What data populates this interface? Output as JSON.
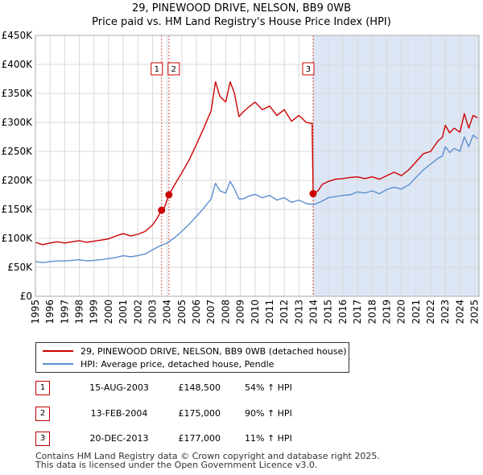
{
  "header": {
    "title_line1": "29, PINEWOOD DRIVE, NELSON, BB9 0WB",
    "title_line2": "Price paid vs. HM Land Registry's House Price Index (HPI)"
  },
  "chart_data": {
    "type": "line",
    "title": "29, PINEWOOD DRIVE, NELSON, BB9 0WB — Price paid vs. HM Land Registry's House Price Index (HPI)",
    "xlabel": "",
    "ylabel": "",
    "xlim": [
      1995,
      2025.3
    ],
    "ylim": [
      0,
      450000
    ],
    "y_ticks": [
      0,
      50000,
      100000,
      150000,
      200000,
      250000,
      300000,
      350000,
      400000,
      450000
    ],
    "y_tick_labels": [
      "£0",
      "£50K",
      "£100K",
      "£150K",
      "£200K",
      "£250K",
      "£300K",
      "£350K",
      "£400K",
      "£450K"
    ],
    "x_ticks": [
      1995,
      1996,
      1997,
      1998,
      1999,
      2000,
      2001,
      2002,
      2003,
      2004,
      2005,
      2006,
      2007,
      2008,
      2009,
      2010,
      2011,
      2012,
      2013,
      2014,
      2015,
      2016,
      2017,
      2018,
      2019,
      2020,
      2021,
      2022,
      2023,
      2024,
      2025
    ],
    "x_tick_labels": [
      "1995",
      "1996",
      "1997",
      "1998",
      "1999",
      "2000",
      "2001",
      "2002",
      "2003",
      "2004",
      "2005",
      "2006",
      "2007",
      "2008",
      "2009",
      "2010",
      "2011",
      "2012",
      "2013",
      "2014",
      "2015",
      "2016",
      "2017",
      "2018",
      "2019",
      "2020",
      "2021",
      "2022",
      "2023",
      "2024",
      "2025"
    ],
    "grid": true,
    "shaded_region": {
      "from": 2013.97,
      "to": 2025.3,
      "color": "#dde6f5"
    },
    "series": [
      {
        "name": "29, PINEWOOD DRIVE, NELSON, BB9 0WB (detached house)",
        "color": "#cc0000",
        "x": [
          1995.0,
          1995.5,
          1996.0,
          1996.5,
          1997.0,
          1997.5,
          1998.0,
          1998.5,
          1999.0,
          1999.5,
          2000.0,
          2000.5,
          2001.0,
          2001.5,
          2002.0,
          2002.5,
          2003.0,
          2003.3,
          2003.62,
          2003.8,
          2004.12,
          2004.5,
          2005.0,
          2005.5,
          2006.0,
          2006.5,
          2007.0,
          2007.3,
          2007.6,
          2008.0,
          2008.3,
          2008.6,
          2008.9,
          2009.2,
          2009.5,
          2010.0,
          2010.5,
          2011.0,
          2011.5,
          2012.0,
          2012.5,
          2013.0,
          2013.5,
          2013.9,
          2013.97,
          2014.3,
          2014.6,
          2015.0,
          2015.5,
          2016.0,
          2016.5,
          2017.0,
          2017.5,
          2018.0,
          2018.5,
          2019.0,
          2019.5,
          2020.0,
          2020.5,
          2021.0,
          2021.5,
          2022.0,
          2022.5,
          2022.8,
          2023.0,
          2023.3,
          2023.6,
          2024.0,
          2024.3,
          2024.6,
          2024.9,
          2025.2
        ],
        "values": [
          93000,
          89000,
          92000,
          94000,
          92000,
          94000,
          96000,
          93000,
          95000,
          97000,
          99000,
          104000,
          108000,
          104000,
          107000,
          112000,
          123000,
          134000,
          148500,
          152000,
          175000,
          192000,
          213000,
          235000,
          262000,
          290000,
          320000,
          370000,
          345000,
          335000,
          370000,
          350000,
          310000,
          318000,
          325000,
          335000,
          322000,
          328000,
          312000,
          322000,
          302000,
          312000,
          300000,
          298000,
          177000,
          182000,
          193000,
          198000,
          202000,
          203000,
          205000,
          206000,
          203000,
          206000,
          202000,
          208000,
          214000,
          208000,
          218000,
          232000,
          246000,
          250000,
          268000,
          274000,
          295000,
          282000,
          290000,
          283000,
          315000,
          290000,
          312000,
          308000
        ]
      },
      {
        "name": "HPI: Average price, detached house, Pendle",
        "color": "#5b8fcf",
        "x": [
          1995.0,
          1995.5,
          1996.0,
          1996.5,
          1997.0,
          1997.5,
          1998.0,
          1998.5,
          1999.0,
          1999.5,
          2000.0,
          2000.5,
          2001.0,
          2001.5,
          2002.0,
          2002.5,
          2003.0,
          2003.5,
          2004.0,
          2004.5,
          2005.0,
          2005.5,
          2006.0,
          2006.5,
          2007.0,
          2007.3,
          2007.6,
          2008.0,
          2008.3,
          2008.6,
          2008.9,
          2009.2,
          2009.5,
          2010.0,
          2010.5,
          2011.0,
          2011.5,
          2012.0,
          2012.5,
          2013.0,
          2013.5,
          2014.0,
          2014.5,
          2015.0,
          2015.5,
          2016.0,
          2016.5,
          2017.0,
          2017.5,
          2018.0,
          2018.5,
          2019.0,
          2019.5,
          2020.0,
          2020.5,
          2021.0,
          2021.5,
          2022.0,
          2022.5,
          2022.8,
          2023.0,
          2023.3,
          2023.6,
          2024.0,
          2024.3,
          2024.6,
          2024.9,
          2025.2
        ],
        "values": [
          60000,
          58000,
          60000,
          61000,
          61000,
          62000,
          63000,
          61000,
          62000,
          63000,
          65000,
          67000,
          70000,
          68000,
          70000,
          73000,
          80000,
          87000,
          92000,
          101000,
          112000,
          124000,
          138000,
          152000,
          168000,
          195000,
          182000,
          178000,
          198000,
          185000,
          168000,
          168000,
          172000,
          176000,
          170000,
          174000,
          166000,
          170000,
          162000,
          166000,
          160000,
          158000,
          163000,
          170000,
          172000,
          174000,
          175000,
          180000,
          178000,
          182000,
          177000,
          184000,
          188000,
          185000,
          192000,
          205000,
          218000,
          228000,
          238000,
          242000,
          258000,
          248000,
          255000,
          250000,
          275000,
          258000,
          278000,
          272000
        ]
      }
    ],
    "transactions": [
      {
        "id": "1",
        "x": 2003.62,
        "value": 148500,
        "date": "15-AUG-2003",
        "price": "£148,500",
        "hpi": "54% ↑ HPI"
      },
      {
        "id": "2",
        "x": 2004.12,
        "value": 175000,
        "date": "13-FEB-2004",
        "price": "£175,000",
        "hpi": "90% ↑ HPI"
      },
      {
        "id": "3",
        "x": 2013.97,
        "value": 177000,
        "date": "20-DEC-2013",
        "price": "£177,000",
        "hpi": "11% ↑ HPI"
      }
    ]
  },
  "legend": {
    "property_label": "29, PINEWOOD DRIVE, NELSON, BB9 0WB (detached house)",
    "hpi_label": "HPI: Average price, detached house, Pendle",
    "property_color": "#cc0000",
    "hpi_color": "#5b8fcf"
  },
  "table": {
    "rows": [
      {
        "num": "1",
        "date": "15-AUG-2003",
        "price": "£148,500",
        "hpi": "54% ↑ HPI"
      },
      {
        "num": "2",
        "date": "13-FEB-2004",
        "price": "£175,000",
        "hpi": "90% ↑ HPI"
      },
      {
        "num": "3",
        "date": "20-DEC-2013",
        "price": "£177,000",
        "hpi": "11% ↑ HPI"
      }
    ]
  },
  "footer": {
    "line1": "Contains HM Land Registry data © Crown copyright and database right 2025.",
    "line2": "This data is licensed under the Open Government Licence v3.0."
  }
}
